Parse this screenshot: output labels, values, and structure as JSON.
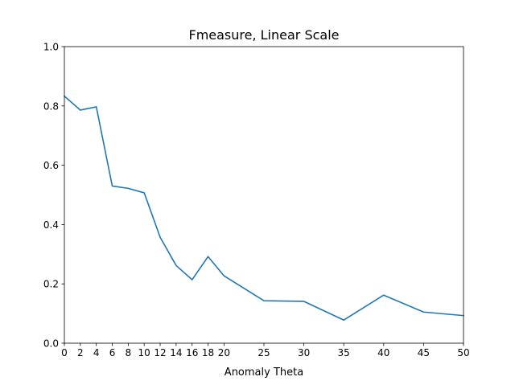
{
  "chart_data": {
    "type": "line",
    "title": "Fmeasure, Linear Scale",
    "xlabel": "Anomaly Theta",
    "ylabel": "",
    "xlim": [
      0,
      50
    ],
    "ylim": [
      0,
      1.0
    ],
    "x_ticks": [
      0,
      2,
      4,
      6,
      8,
      10,
      12,
      14,
      16,
      18,
      20,
      25,
      30,
      35,
      40,
      45,
      50
    ],
    "y_ticks": [
      "0.0",
      "0.2",
      "0.4",
      "0.6",
      "0.8",
      "1.0"
    ],
    "grid": false,
    "line_color": "#1f77b4",
    "series": [
      {
        "x": [
          0,
          2,
          4,
          6,
          8,
          10,
          12,
          14,
          16,
          18,
          20,
          25,
          30,
          35,
          40,
          45,
          50
        ],
        "y": [
          0.833,
          0.786,
          0.797,
          0.53,
          0.522,
          0.507,
          0.357,
          0.262,
          0.214,
          0.292,
          0.227,
          0.143,
          0.141,
          0.078,
          0.162,
          0.105,
          0.093
        ]
      }
    ]
  }
}
